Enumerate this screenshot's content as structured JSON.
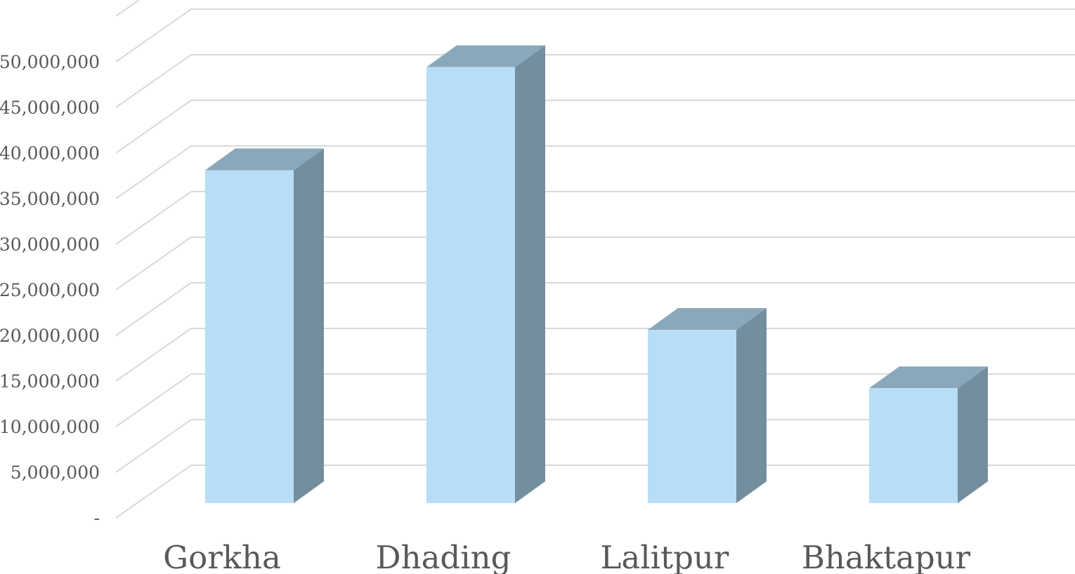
{
  "chart_data": {
    "type": "bar",
    "style": "3d-column",
    "categories": [
      "Gorkha",
      "Dhading",
      "Lalitpur",
      "Bhaktapur"
    ],
    "series": [
      {
        "values": [
          36500000,
          47800000,
          19000000,
          12600000
        ]
      }
    ],
    "ylim": [
      0,
      55000000
    ],
    "yticks": [
      0,
      5000000,
      10000000,
      15000000,
      20000000,
      25000000,
      30000000,
      35000000,
      40000000,
      45000000,
      50000000
    ],
    "ytick_labels": [
      "-",
      "5,000,000",
      "10,000,000",
      "15,000,000",
      "20,000,000",
      "25,000,000",
      "30,000,000",
      "35,000,000",
      "40,000,000",
      "45,000,000",
      "50,000,000"
    ],
    "grid": true,
    "legend": "none",
    "colors": {
      "front": "#b7def6",
      "side": "#738f9d",
      "top": "#8aa8bb",
      "grid": "#d9d9d9",
      "text": "#595959"
    }
  }
}
